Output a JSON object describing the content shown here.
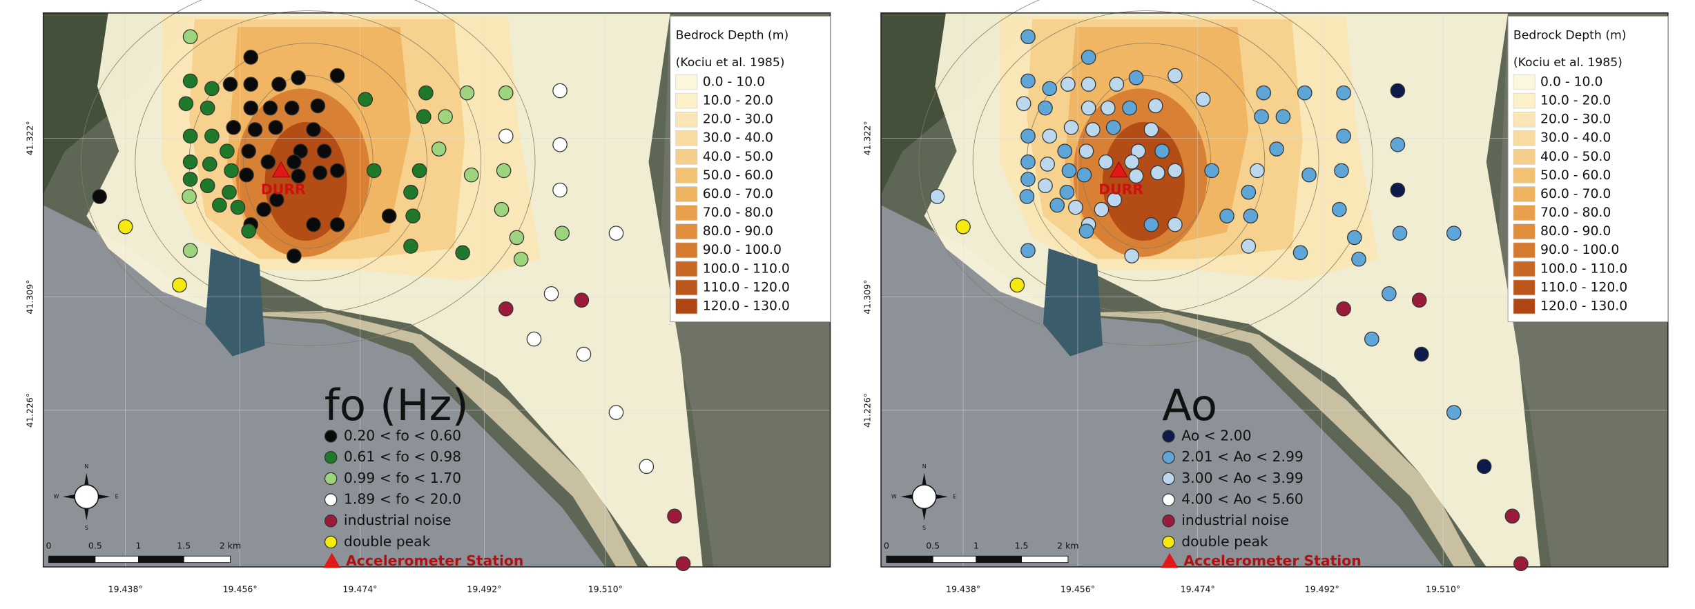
{
  "panels": [
    {
      "latitude_labels": [
        "41.322°",
        "41.309°",
        "41.226°"
      ],
      "longitude_labels": [
        "19.438°",
        "19.456°",
        "19.474°",
        "19.492°",
        "19.510°"
      ],
      "station_label": "DURR",
      "compass": [
        "N",
        "E",
        "S",
        "W"
      ],
      "scale_bar": [
        "0",
        "0.5",
        "1",
        "1.5",
        "2 km"
      ],
      "legend": {
        "title": "Bedrock Depth (m)",
        "source": "(Kociu et al. 1985)",
        "classes": [
          {
            "label": "0.0 - 10.0",
            "color": "#fcf7dc"
          },
          {
            "label": "10.0 - 20.0",
            "color": "#fbf0c8"
          },
          {
            "label": "20.0 - 30.0",
            "color": "#f9e6b4"
          },
          {
            "label": "30.0 - 40.0",
            "color": "#f7dba0"
          },
          {
            "label": "40.0 - 50.0",
            "color": "#f5cf8a"
          },
          {
            "label": "50.0 - 60.0",
            "color": "#f2c174"
          },
          {
            "label": "60.0 - 70.0",
            "color": "#efb25f"
          },
          {
            "label": "70.0 - 80.0",
            "color": "#e9a04c"
          },
          {
            "label": "80.0 - 90.0",
            "color": "#e08d3c"
          },
          {
            "label": "90.0 - 100.0",
            "color": "#d57a2f"
          },
          {
            "label": "100.0 - 110.0",
            "color": "#c96724"
          },
          {
            "label": "110.0 - 120.0",
            "color": "#bd561a"
          },
          {
            "label": "120.0 - 130.0",
            "color": "#b04612"
          }
        ]
      },
      "markers": {
        "title": "fo (Hz)",
        "station": "Accelerometer Station",
        "items": [
          {
            "label": "0.20 < fo < 0.60",
            "color": "#0a0a0a"
          },
          {
            "label": "0.61 < fo < 0.98",
            "color": "#1e7a2a"
          },
          {
            "label": "0.99 < fo < 1.70",
            "color": "#9ed47e"
          },
          {
            "label": "1.89 < fo < 20.0",
            "color": "#ffffff"
          },
          {
            "label": "industrial noise",
            "color": "#9b1b3a"
          },
          {
            "label": "double peak",
            "color": "#f5ea10"
          }
        ]
      }
    },
    {
      "latitude_labels": [
        "41.322°",
        "41.309°",
        "41.226°"
      ],
      "longitude_labels": [
        "19.438°",
        "19.456°",
        "19.474°",
        "19.492°",
        "19.510°"
      ],
      "station_label": "DURR",
      "compass": [
        "N",
        "E",
        "S",
        "W"
      ],
      "scale_bar": [
        "0",
        "0.5",
        "1",
        "1.5",
        "2 km"
      ],
      "legend": {
        "title": "Bedrock Depth (m)",
        "source": "(Kociu et al. 1985)",
        "classes": [
          {
            "label": "0.0 - 10.0",
            "color": "#fcf7dc"
          },
          {
            "label": "10.0 - 20.0",
            "color": "#fbf0c8"
          },
          {
            "label": "20.0 - 30.0",
            "color": "#f9e6b4"
          },
          {
            "label": "30.0 - 40.0",
            "color": "#f7dba0"
          },
          {
            "label": "40.0 - 50.0",
            "color": "#f5cf8a"
          },
          {
            "label": "50.0 - 60.0",
            "color": "#f2c174"
          },
          {
            "label": "60.0 - 70.0",
            "color": "#efb25f"
          },
          {
            "label": "70.0 - 80.0",
            "color": "#e9a04c"
          },
          {
            "label": "80.0 - 90.0",
            "color": "#e08d3c"
          },
          {
            "label": "90.0 - 100.0",
            "color": "#d57a2f"
          },
          {
            "label": "100.0 - 110.0",
            "color": "#c96724"
          },
          {
            "label": "110.0 - 120.0",
            "color": "#bd561a"
          },
          {
            "label": "120.0 - 130.0",
            "color": "#b04612"
          }
        ]
      },
      "markers": {
        "title": "Ao",
        "station": "Accelerometer Station",
        "items": [
          {
            "label": "Ao < 2.00",
            "color": "#0d1a4a"
          },
          {
            "label": "2.01 < Ao < 2.99",
            "color": "#5ea6d8"
          },
          {
            "label": "3.00 < Ao < 3.99",
            "color": "#bcd8ee"
          },
          {
            "label": "4.00 < Ao < 5.60",
            "color": "#ffffff"
          },
          {
            "label": "industrial noise",
            "color": "#9b1b3a"
          },
          {
            "label": "double peak",
            "color": "#f5ea10"
          }
        ]
      }
    }
  ]
}
